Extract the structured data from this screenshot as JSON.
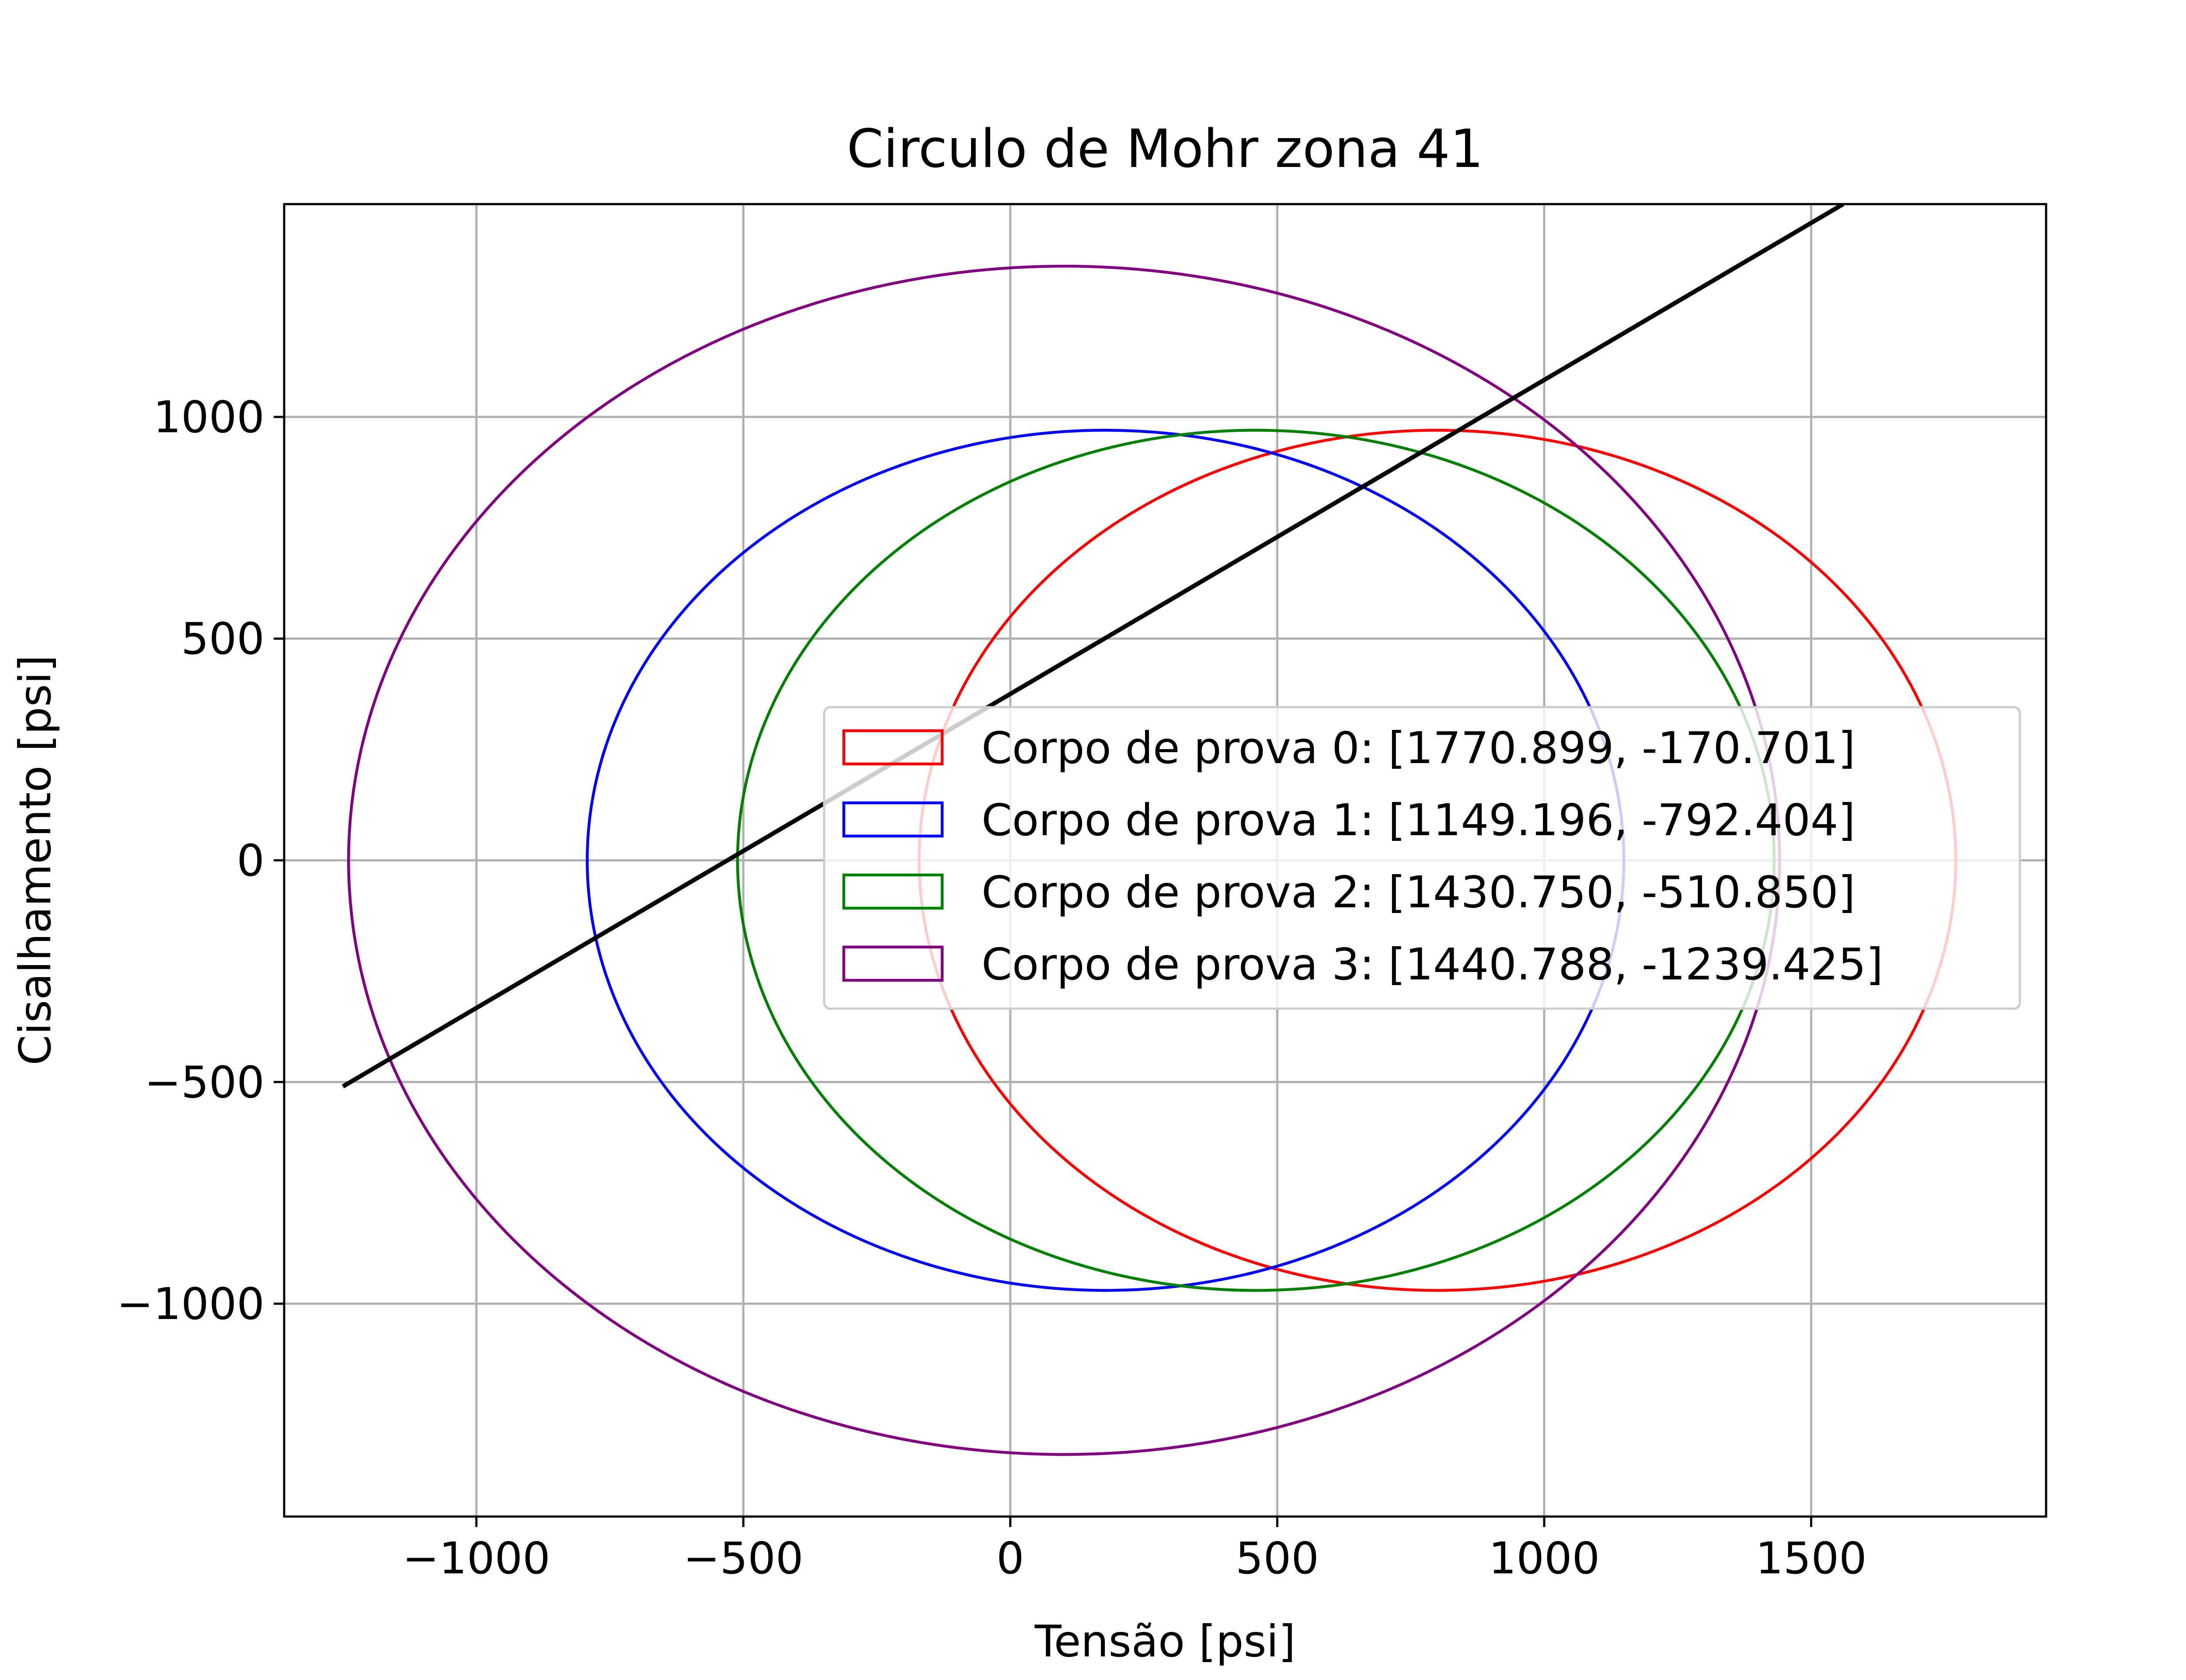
{
  "chart_data": {
    "type": "line",
    "title": "Circulo de Mohr zona 41",
    "xlabel": "Tensão [psi]",
    "ylabel": "Cisalhamento [psi]",
    "xlim": [
      -1360,
      1940
    ],
    "ylim": [
      -1480,
      1480
    ],
    "xticks": [
      {
        "value": -1000,
        "label": "−1000"
      },
      {
        "value": -500,
        "label": "−500"
      },
      {
        "value": 0,
        "label": "0"
      },
      {
        "value": 500,
        "label": "500"
      },
      {
        "value": 1000,
        "label": "1000"
      },
      {
        "value": 1500,
        "label": "1500"
      }
    ],
    "yticks": [
      {
        "value": -1000,
        "label": "−1000"
      },
      {
        "value": -500,
        "label": "−500"
      },
      {
        "value": 0,
        "label": "0"
      },
      {
        "value": 500,
        "label": "500"
      },
      {
        "value": 1000,
        "label": "1000"
      }
    ],
    "grid": true,
    "legend_position": "center-right",
    "series": [
      {
        "name": "Corpo de prova 0: [1770.899, -170.701]",
        "kind": "ellipse",
        "sigma1": 1770.899,
        "sigma3": -170.701,
        "half_height": 970,
        "color": "#ff0000"
      },
      {
        "name": "Corpo de prova 1: [1149.196, -792.404]",
        "kind": "ellipse",
        "sigma1": 1149.196,
        "sigma3": -792.404,
        "half_height": 970,
        "color": "#0000ff"
      },
      {
        "name": "Corpo de prova 2: [1430.750, -510.850]",
        "kind": "ellipse",
        "sigma1": 1430.75,
        "sigma3": -510.85,
        "half_height": 970,
        "color": "#008000"
      },
      {
        "name": "Corpo de prova 3: [1440.788, -1239.425]",
        "kind": "ellipse",
        "sigma1": 1440.788,
        "sigma3": -1239.425,
        "half_height": 1340,
        "color": "#800080"
      }
    ],
    "envelope": {
      "kind": "line",
      "color": "#000000",
      "points": [
        [
          -1250,
          -510
        ],
        [
          1560,
          1480
        ]
      ]
    }
  }
}
